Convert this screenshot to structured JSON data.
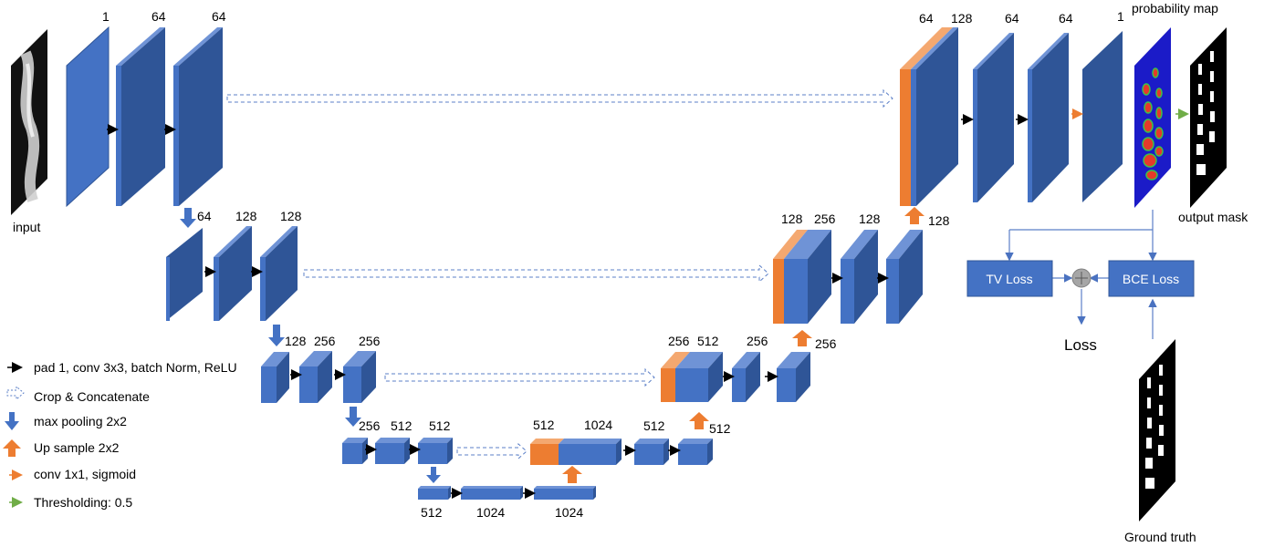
{
  "diagram": {
    "input_label": "input",
    "probability_map_label": "probability map",
    "output_mask_label": "output mask",
    "ground_truth_label": "Ground truth",
    "loss_label": "Loss",
    "tv_loss_label": "TV Loss",
    "bce_loss_label": "BCE Loss",
    "channels": {
      "enc1": [
        "1",
        "64",
        "64"
      ],
      "enc2": [
        "64",
        "128",
        "128"
      ],
      "enc3": [
        "128",
        "256",
        "256"
      ],
      "enc4": [
        "256",
        "512",
        "512"
      ],
      "bottom": [
        "512",
        "1024",
        "1024"
      ],
      "dec4": [
        "512",
        "1024",
        "512",
        "512"
      ],
      "dec3": [
        "256",
        "512",
        "256",
        "256"
      ],
      "dec2": [
        "128",
        "256",
        "128",
        "128"
      ],
      "dec1": [
        "64",
        "128",
        "64",
        "64",
        "1"
      ]
    },
    "legend": [
      "pad 1, conv 3x3, batch Norm, ReLU",
      "Crop & Concatenate",
      "max pooling 2x2",
      "Up sample 2x2",
      "conv 1x1, sigmoid",
      "Thresholding: 0.5"
    ]
  },
  "colors": {
    "block_front": "#4472c4",
    "block_side": "#2f5597",
    "block_top": "#6f93d6",
    "concat": "#ed7d31",
    "concat_top": "#f4a870",
    "line": "#5b7fc7",
    "arrow_black": "#000000",
    "arrow_orange": "#ed7d31",
    "arrow_green": "#70ad47",
    "prob_bg": "#1b1bc8"
  }
}
